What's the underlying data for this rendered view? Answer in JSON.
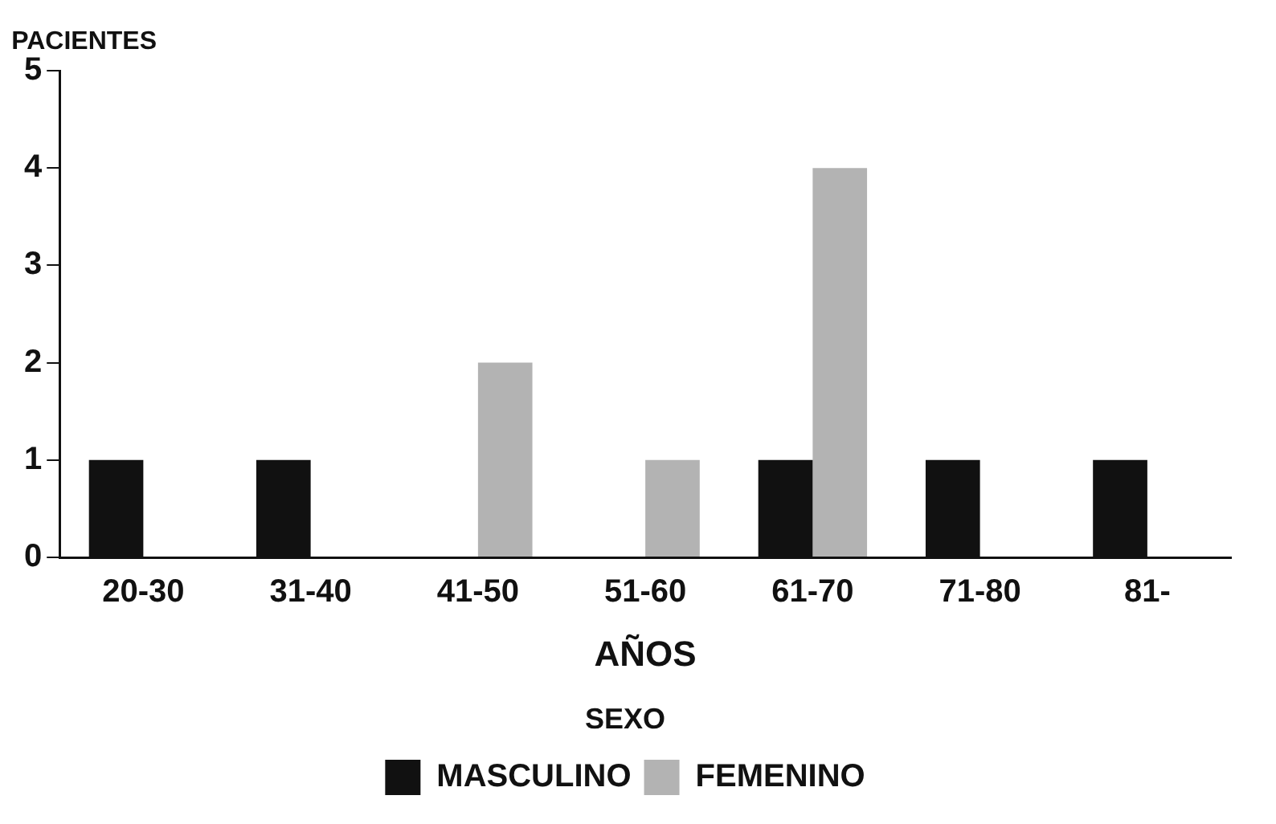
{
  "chart_data": {
    "type": "bar",
    "ylabel": "PACIENTES",
    "xlabel": "AÑOS",
    "legend_title": "SEXO",
    "categories": [
      "20-30",
      "31-40",
      "41-50",
      "51-60",
      "61-70",
      "71-80",
      "81-"
    ],
    "series": [
      {
        "name": "MASCULINO",
        "color": "#111111",
        "values": [
          1,
          1,
          0,
          0,
          1,
          1,
          1
        ]
      },
      {
        "name": "FEMENINO",
        "color": "#b3b3b3",
        "values": [
          0,
          0,
          2,
          1,
          4,
          0,
          0
        ]
      }
    ],
    "ylim": [
      0,
      5
    ],
    "yticks": [
      0,
      1,
      2,
      3,
      4,
      5
    ],
    "grid": false,
    "legend": "bottom"
  }
}
